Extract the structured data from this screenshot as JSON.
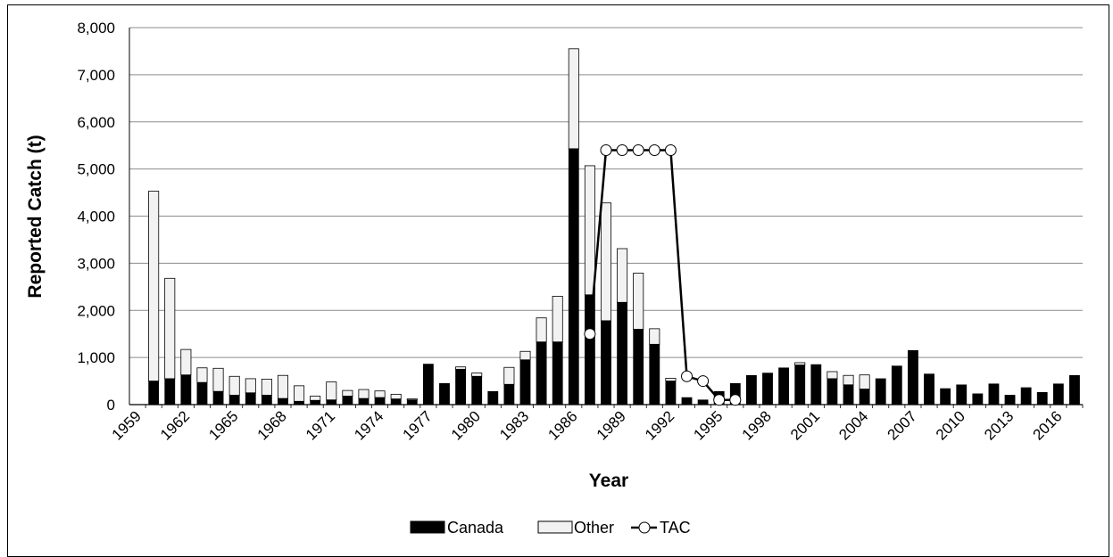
{
  "chart_data": {
    "type": "bar",
    "stacked": true,
    "xlabel": "Year",
    "ylabel": "Reported Catch (t)",
    "ylim": [
      0,
      8000
    ],
    "yticks": [
      "0",
      "1,000",
      "2,000",
      "3,000",
      "4,000",
      "5,000",
      "6,000",
      "7,000",
      "8,000"
    ],
    "xtick_labels": [
      "1959",
      "1962",
      "1965",
      "1968",
      "1971",
      "1974",
      "1977",
      "1980",
      "1983",
      "1986",
      "1989",
      "1992",
      "1995",
      "1998",
      "2001",
      "2004",
      "2007",
      "2010",
      "2013",
      "2016"
    ],
    "categories": [
      "1959",
      "1960",
      "1961",
      "1962",
      "1963",
      "1964",
      "1965",
      "1966",
      "1967",
      "1968",
      "1969",
      "1970",
      "1971",
      "1972",
      "1973",
      "1974",
      "1975",
      "1976",
      "1977",
      "1978",
      "1979",
      "1980",
      "1981",
      "1982",
      "1983",
      "1984",
      "1985",
      "1986",
      "1987",
      "1988",
      "1989",
      "1990",
      "1991",
      "1992",
      "1993",
      "1994",
      "1995",
      "1996",
      "1997",
      "1998",
      "1999",
      "2000",
      "2001",
      "2002",
      "2003",
      "2004",
      "2005",
      "2006",
      "2007",
      "2008",
      "2009",
      "2010",
      "2011",
      "2012",
      "2013",
      "2014",
      "2015",
      "2016",
      "2017"
    ],
    "series": [
      {
        "name": "Canada",
        "kind": "bar",
        "color": "#000000",
        "values": [
          0,
          500,
          550,
          630,
          470,
          280,
          200,
          250,
          200,
          130,
          70,
          90,
          100,
          180,
          130,
          150,
          120,
          100,
          860,
          450,
          750,
          600,
          280,
          430,
          950,
          1330,
          1330,
          5430,
          2330,
          1780,
          2170,
          1600,
          1280,
          500,
          150,
          100,
          280,
          450,
          620,
          670,
          780,
          840,
          850,
          550,
          420,
          330,
          550,
          820,
          1150,
          650,
          340,
          420,
          230,
          440,
          200,
          360,
          260,
          440,
          620
        ]
      },
      {
        "name": "Other",
        "kind": "bar",
        "color": "#f2f2f2",
        "values": [
          0,
          4030,
          2130,
          540,
          310,
          490,
          400,
          300,
          340,
          490,
          330,
          90,
          380,
          120,
          190,
          140,
          100,
          20,
          0,
          0,
          50,
          70,
          0,
          360,
          180,
          510,
          970,
          2120,
          2740,
          2500,
          1140,
          1190,
          330,
          60,
          0,
          0,
          0,
          0,
          0,
          0,
          0,
          50,
          0,
          150,
          200,
          300,
          0,
          0,
          0,
          0,
          0,
          0,
          0,
          0,
          0,
          0,
          0,
          0,
          0
        ]
      },
      {
        "name": "TAC",
        "kind": "line",
        "color": "#000000",
        "points": [
          [
            1987,
            1500
          ],
          [
            1988,
            5400
          ],
          [
            1989,
            5400
          ],
          [
            1990,
            5400
          ],
          [
            1991,
            5400
          ],
          [
            1992,
            5400
          ],
          [
            1993,
            600
          ],
          [
            1994,
            500
          ],
          [
            1995,
            100
          ],
          [
            1996,
            100
          ]
        ]
      }
    ],
    "grid": "horizontal",
    "legend": "bottom-center"
  }
}
